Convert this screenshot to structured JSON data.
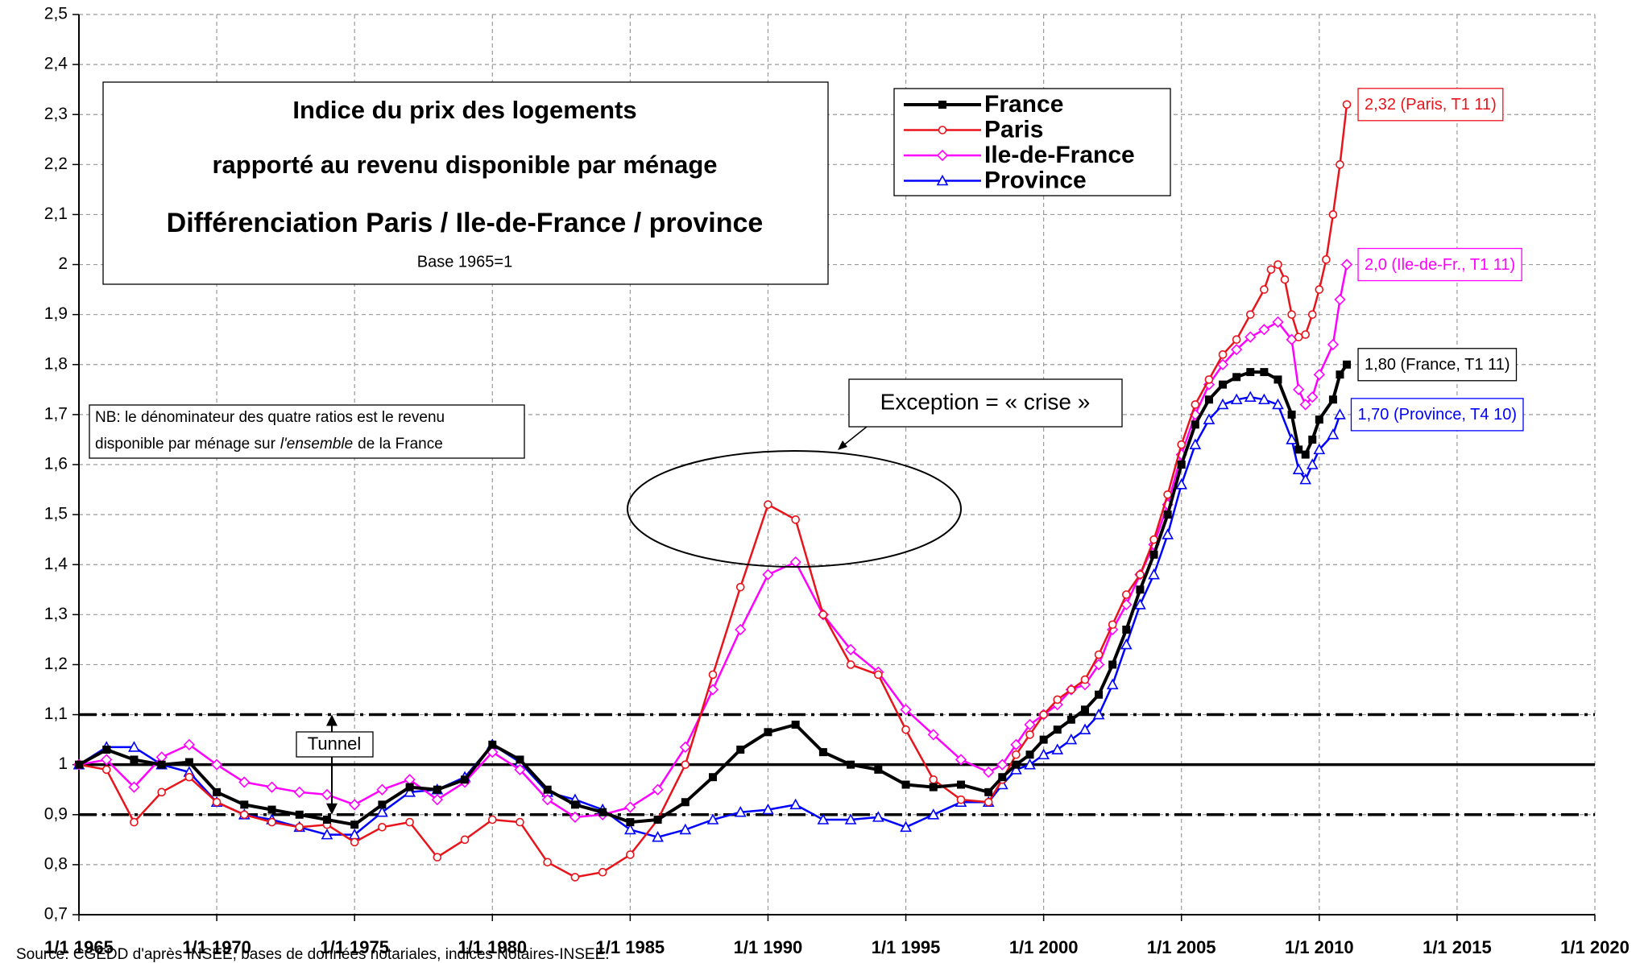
{
  "chart_data": {
    "type": "line",
    "annotations": {
      "box_title": [
        "Indice du prix des logements",
        "rapporté au revenu disponible par ménage",
        "Différenciation Paris / Ile-de-France / province"
      ],
      "base": "Base 1965=1",
      "note_line1": "NB: le dénominateur des quatre ratios est le revenu",
      "note_line2": [
        "disponible par ménage sur",
        "l'ensemble",
        "de la France"
      ],
      "exception": "Exception = « crise »",
      "tunnel": "Tunnel",
      "source": "Source: CGEDD d'après INSEE, bases de données notariales, indices Notaires-INSEE."
    },
    "xlim": [
      1965,
      2020
    ],
    "xticks": [
      {
        "value": 1965,
        "label": "1/1 1965"
      },
      {
        "value": 1970,
        "label": "1/1 1970"
      },
      {
        "value": 1975,
        "label": "1/1 1975"
      },
      {
        "value": 1980,
        "label": "1/1 1980"
      },
      {
        "value": 1985,
        "label": "1/1 1985"
      },
      {
        "value": 1990,
        "label": "1/1 1990"
      },
      {
        "value": 1995,
        "label": "1/1 1995"
      },
      {
        "value": 2000,
        "label": "1/1 2000"
      },
      {
        "value": 2005,
        "label": "1/1 2005"
      },
      {
        "value": 2010,
        "label": "1/1 2010"
      },
      {
        "value": 2015,
        "label": "1/1 2015"
      },
      {
        "value": 2020,
        "label": "1/1 2020"
      }
    ],
    "ylim": [
      0.7,
      2.5
    ],
    "yticks": [
      {
        "value": 0.7,
        "label": "0,7"
      },
      {
        "value": 0.8,
        "label": "0,8"
      },
      {
        "value": 0.9,
        "label": "0,9"
      },
      1,
      {
        "value": 1.1,
        "label": "1,1"
      },
      {
        "value": 1.2,
        "label": "1,2"
      },
      {
        "value": 1.3,
        "label": "1,3"
      },
      {
        "value": 1.4,
        "label": "1,4"
      },
      {
        "value": 1.5,
        "label": "1,5"
      },
      {
        "value": 1.6,
        "label": "1,6"
      },
      {
        "value": 1.7,
        "label": "1,7"
      },
      {
        "value": 1.8,
        "label": "1,8"
      },
      {
        "value": 1.9,
        "label": "1,9"
      },
      2,
      {
        "value": 2.1,
        "label": "2,1"
      },
      {
        "value": 2.2,
        "label": "2,2"
      },
      {
        "value": 2.3,
        "label": "2,3"
      },
      {
        "value": 2.4,
        "label": "2,4"
      },
      {
        "value": 2.5,
        "label": "2,5"
      }
    ],
    "grid": true,
    "reference_lines": [
      {
        "value": 1.1,
        "style": "dashdot"
      },
      {
        "value": 1,
        "style": "solid"
      },
      {
        "value": 0.9,
        "style": "dashdot"
      }
    ],
    "series": [
      {
        "name": "France",
        "color": "#000000",
        "marker": "square",
        "width": 4,
        "end_label": "1,80 (France, T1 11)",
        "x": [
          1965,
          1966,
          1967,
          1968,
          1969,
          1970,
          1971,
          1972,
          1973,
          1974,
          1975,
          1976,
          1977,
          1978,
          1979,
          1980,
          1981,
          1982,
          1983,
          1984,
          1985,
          1986,
          1987,
          1988,
          1989,
          1990,
          1991,
          1992,
          1993,
          1994,
          1995,
          1996,
          1997,
          1998,
          1998.5,
          1999,
          1999.5,
          2000,
          2000.5,
          2001,
          2001.5,
          2002,
          2002.5,
          2003,
          2003.5,
          2004,
          2004.5,
          2005,
          2005.5,
          2006,
          2006.5,
          2007,
          2007.5,
          2008,
          2008.5,
          2009,
          2009.25,
          2009.5,
          2009.75,
          2010,
          2010.5,
          2010.75,
          2011
        ],
        "values": [
          1.0,
          1.03,
          1.01,
          1.0,
          1.005,
          0.945,
          0.92,
          0.91,
          0.9,
          0.89,
          0.88,
          0.92,
          0.955,
          0.95,
          0.97,
          1.04,
          1.01,
          0.95,
          0.92,
          0.905,
          0.885,
          0.89,
          0.925,
          0.975,
          1.03,
          1.065,
          1.08,
          1.025,
          1.0,
          0.99,
          0.96,
          0.955,
          0.96,
          0.945,
          0.975,
          1.0,
          1.02,
          1.05,
          1.07,
          1.09,
          1.11,
          1.14,
          1.2,
          1.27,
          1.35,
          1.42,
          1.5,
          1.6,
          1.68,
          1.73,
          1.76,
          1.775,
          1.785,
          1.785,
          1.77,
          1.7,
          1.63,
          1.62,
          1.65,
          1.69,
          1.73,
          1.78,
          1.8
        ]
      },
      {
        "name": "Paris",
        "color": "#e8141c",
        "marker": "circle",
        "width": 2.5,
        "end_label": "2,32 (Paris, T1 11)",
        "x": [
          1965,
          1966,
          1967,
          1968,
          1969,
          1970,
          1971,
          1972,
          1973,
          1974,
          1975,
          1976,
          1977,
          1978,
          1979,
          1980,
          1981,
          1982,
          1983,
          1984,
          1985,
          1986,
          1987,
          1988,
          1989,
          1990,
          1991,
          1992,
          1993,
          1994,
          1995,
          1996,
          1997,
          1998,
          1998.5,
          1999,
          1999.5,
          2000,
          2000.5,
          2001,
          2001.5,
          2002,
          2002.5,
          2003,
          2003.5,
          2004,
          2004.5,
          2005,
          2005.5,
          2006,
          2006.5,
          2007,
          2007.5,
          2008,
          2008.25,
          2008.5,
          2008.75,
          2009,
          2009.25,
          2009.5,
          2009.75,
          2010,
          2010.25,
          2010.5,
          2010.75,
          2011
        ],
        "values": [
          1.0,
          0.99,
          0.885,
          0.945,
          0.975,
          0.925,
          0.9,
          0.885,
          0.875,
          0.88,
          0.845,
          0.875,
          0.885,
          0.815,
          0.85,
          0.89,
          0.885,
          0.805,
          0.775,
          0.785,
          0.82,
          0.89,
          1.0,
          1.18,
          1.355,
          1.52,
          1.49,
          1.3,
          1.2,
          1.18,
          1.07,
          0.97,
          0.93,
          0.925,
          0.97,
          1.02,
          1.06,
          1.1,
          1.13,
          1.15,
          1.17,
          1.22,
          1.28,
          1.34,
          1.38,
          1.45,
          1.54,
          1.64,
          1.72,
          1.77,
          1.82,
          1.85,
          1.9,
          1.95,
          1.99,
          2.0,
          1.97,
          1.9,
          1.855,
          1.86,
          1.9,
          1.95,
          2.01,
          2.1,
          2.2,
          2.32
        ]
      },
      {
        "name": "Ile-de-France",
        "color": "#ff00ff",
        "marker": "diamond",
        "width": 2.5,
        "end_label": "2,0 (Ile-de-Fr., T1 11)",
        "x": [
          1965,
          1966,
          1967,
          1968,
          1969,
          1970,
          1971,
          1972,
          1973,
          1974,
          1975,
          1976,
          1977,
          1978,
          1979,
          1980,
          1981,
          1982,
          1983,
          1984,
          1985,
          1986,
          1987,
          1988,
          1989,
          1990,
          1991,
          1992,
          1993,
          1994,
          1995,
          1996,
          1997,
          1998,
          1998.5,
          1999,
          1999.5,
          2000,
          2000.5,
          2001,
          2001.5,
          2002,
          2002.5,
          2003,
          2003.5,
          2004,
          2004.5,
          2005,
          2005.5,
          2006,
          2006.5,
          2007,
          2007.5,
          2008,
          2008.5,
          2009,
          2009.25,
          2009.5,
          2009.75,
          2010,
          2010.5,
          2010.75,
          2011
        ],
        "values": [
          1.0,
          1.01,
          0.955,
          1.015,
          1.04,
          1.0,
          0.965,
          0.955,
          0.945,
          0.94,
          0.92,
          0.95,
          0.97,
          0.93,
          0.965,
          1.025,
          0.99,
          0.93,
          0.895,
          0.9,
          0.915,
          0.95,
          1.035,
          1.15,
          1.27,
          1.38,
          1.405,
          1.3,
          1.23,
          1.185,
          1.11,
          1.06,
          1.01,
          0.985,
          1.0,
          1.04,
          1.08,
          1.1,
          1.12,
          1.15,
          1.16,
          1.2,
          1.27,
          1.32,
          1.38,
          1.44,
          1.52,
          1.62,
          1.7,
          1.76,
          1.8,
          1.83,
          1.855,
          1.87,
          1.885,
          1.85,
          1.75,
          1.72,
          1.735,
          1.78,
          1.84,
          1.93,
          2.0
        ]
      },
      {
        "name": "Province",
        "color": "#0000ff",
        "marker": "triangle",
        "width": 2.5,
        "end_label": "1,70 (Province, T4 10)",
        "x": [
          1965,
          1966,
          1967,
          1968,
          1969,
          1970,
          1971,
          1972,
          1973,
          1974,
          1975,
          1976,
          1977,
          1978,
          1979,
          1980,
          1981,
          1982,
          1983,
          1984,
          1985,
          1986,
          1987,
          1988,
          1989,
          1990,
          1991,
          1992,
          1993,
          1994,
          1995,
          1996,
          1997,
          1998,
          1998.5,
          1999,
          1999.5,
          2000,
          2000.5,
          2001,
          2001.5,
          2002,
          2002.5,
          2003,
          2003.5,
          2004,
          2004.5,
          2005,
          2005.5,
          2006,
          2006.5,
          2007,
          2007.5,
          2008,
          2008.5,
          2009,
          2009.25,
          2009.5,
          2009.75,
          2010,
          2010.5,
          2010.75
        ],
        "values": [
          1.0,
          1.035,
          1.035,
          1.0,
          0.985,
          0.925,
          0.9,
          0.89,
          0.875,
          0.86,
          0.86,
          0.905,
          0.945,
          0.95,
          0.975,
          1.04,
          1.005,
          0.945,
          0.93,
          0.91,
          0.87,
          0.855,
          0.87,
          0.89,
          0.905,
          0.91,
          0.92,
          0.89,
          0.89,
          0.895,
          0.875,
          0.9,
          0.925,
          0.925,
          0.96,
          0.99,
          1.0,
          1.02,
          1.03,
          1.05,
          1.07,
          1.1,
          1.16,
          1.24,
          1.32,
          1.38,
          1.46,
          1.56,
          1.64,
          1.69,
          1.72,
          1.73,
          1.735,
          1.73,
          1.72,
          1.65,
          1.59,
          1.57,
          1.6,
          1.63,
          1.66,
          1.7
        ]
      }
    ]
  }
}
